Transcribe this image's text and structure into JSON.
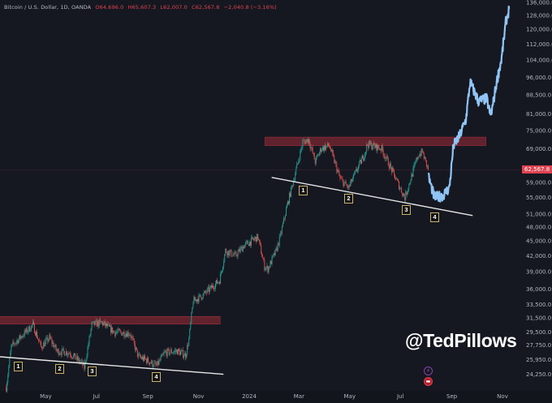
{
  "chart_data": {
    "type": "candlestick",
    "title": "Bitcoin / U.S. Dollar, 1D, OANDA",
    "ohlc": {
      "open": "O64,696.0",
      "high": "H65,607.3",
      "low": "L62,007.0",
      "close": "C62,567.8",
      "change": "−2,040.8 (−3.16%)"
    },
    "y_scale": "log",
    "ylim": [
      23500,
      136000
    ],
    "y_ticks": [
      "136,000.0",
      "128,000.0",
      "120,000.0",
      "112,000.0",
      "104,000.0",
      "96,000.0",
      "88,500.0",
      "81,000.0",
      "75,000.0",
      "69,000.0",
      "59,000.0",
      "55,000.0",
      "51,000.0",
      "48,000.0",
      "45,000.0",
      "42,000.0",
      "39,000.0",
      "36,000.0",
      "33,500.0",
      "31,500.0",
      "29,500.0",
      "27,750.0",
      "25,950.0",
      "24,250.0"
    ],
    "x_ticks": [
      {
        "label": "May",
        "date": "2023-05-01"
      },
      {
        "label": "Jul",
        "date": "2023-07-01"
      },
      {
        "label": "Sep",
        "date": "2023-09-01"
      },
      {
        "label": "Nov",
        "date": "2023-11-01"
      },
      {
        "label": "2024",
        "date": "2024-01-01"
      },
      {
        "label": "Mar",
        "date": "2024-03-01"
      },
      {
        "label": "May",
        "date": "2024-05-01"
      },
      {
        "label": "Jul",
        "date": "2024-07-01"
      },
      {
        "label": "Sep",
        "date": "2024-09-01"
      },
      {
        "label": "Nov",
        "date": "2024-11-01"
      }
    ],
    "current_price": 62567.8,
    "current_price_label": "62,567.8",
    "price_path": [
      [
        "2023-03-14",
        22800
      ],
      [
        "2023-03-20",
        27500
      ],
      [
        "2023-03-24",
        28000
      ],
      [
        "2023-04-15",
        30500
      ],
      [
        "2023-04-25",
        27500
      ],
      [
        "2023-05-05",
        28700
      ],
      [
        "2023-05-14",
        27000
      ],
      [
        "2023-05-29",
        26800
      ],
      [
        "2023-06-13",
        25500
      ],
      [
        "2023-06-16",
        25000
      ],
      [
        "2023-06-25",
        30500
      ],
      [
        "2023-07-07",
        30800
      ],
      [
        "2023-07-22",
        29500
      ],
      [
        "2023-08-10",
        29300
      ],
      [
        "2023-08-20",
        26300
      ],
      [
        "2023-08-30",
        25900
      ],
      [
        "2023-09-11",
        25200
      ],
      [
        "2023-09-21",
        26800
      ],
      [
        "2023-10-06",
        27000
      ],
      [
        "2023-10-16",
        26500
      ],
      [
        "2023-10-20",
        28500
      ],
      [
        "2023-10-25",
        34000
      ],
      [
        "2023-11-06",
        35000
      ],
      [
        "2023-11-26",
        37500
      ],
      [
        "2023-12-03",
        43000
      ],
      [
        "2023-12-15",
        42000
      ],
      [
        "2023-12-25",
        44000
      ],
      [
        "2024-01-11",
        45800
      ],
      [
        "2024-01-19",
        40000
      ],
      [
        "2024-01-23",
        39500
      ],
      [
        "2024-02-02",
        43000
      ],
      [
        "2024-02-07",
        46000
      ],
      [
        "2024-02-14",
        52000
      ],
      [
        "2024-02-25",
        61500
      ],
      [
        "2024-03-05",
        71000
      ],
      [
        "2024-03-12",
        72000
      ],
      [
        "2024-03-20",
        65000
      ],
      [
        "2024-03-27",
        69000
      ],
      [
        "2024-04-06",
        70000
      ],
      [
        "2024-04-19",
        60000
      ],
      [
        "2024-04-29",
        57500
      ],
      [
        "2024-05-10",
        63000
      ],
      [
        "2024-05-18",
        67000
      ],
      [
        "2024-05-22",
        70500
      ],
      [
        "2024-06-08",
        69000
      ],
      [
        "2024-06-23",
        61000
      ],
      [
        "2024-07-06",
        55000
      ],
      [
        "2024-07-13",
        60000
      ],
      [
        "2024-07-22",
        67000
      ],
      [
        "2024-07-27",
        68000
      ],
      [
        "2024-08-03",
        62567.8
      ]
    ],
    "projection_path": [
      [
        "2024-08-04",
        60500
      ],
      [
        "2024-08-11",
        55000
      ],
      [
        "2024-08-21",
        55500
      ],
      [
        "2024-08-29",
        57500
      ],
      [
        "2024-09-03",
        70000
      ],
      [
        "2024-09-10",
        73000
      ],
      [
        "2024-09-18",
        79000
      ],
      [
        "2024-09-23",
        94000
      ],
      [
        "2024-10-03",
        86000
      ],
      [
        "2024-10-13",
        87000
      ],
      [
        "2024-10-18",
        80000
      ],
      [
        "2024-10-25",
        94000
      ],
      [
        "2024-10-31",
        105000
      ],
      [
        "2024-11-05",
        124000
      ],
      [
        "2024-11-09",
        132000
      ]
    ],
    "resistance_zones": [
      {
        "from": "2023-03-06",
        "to": "2023-11-27",
        "low": 30600,
        "high": 31700
      },
      {
        "from": "2024-01-20",
        "to": "2024-10-12",
        "low": 70000,
        "high": 72800
      }
    ],
    "trendlines": [
      {
        "start": [
          "2023-03-06",
          26300
        ],
        "end": [
          "2023-12-01",
          24250
        ]
      },
      {
        "start": [
          "2024-01-28",
          60400
        ],
        "end": [
          "2024-09-26",
          50600
        ]
      }
    ],
    "pattern_labels": {
      "lower": [
        "1",
        "2",
        "3",
        "4"
      ],
      "upper": [
        "1",
        "2",
        "3",
        "4"
      ]
    },
    "colors": {
      "up": "#26a69a",
      "down": "#ef5350",
      "projection": "#90c4f5",
      "zone": "#7a2530",
      "trendline": "#e6e6e6",
      "background": "#151821",
      "price_line": "#e0434f"
    }
  },
  "watermark": "@TedPillows",
  "event_icons": [
    "lightning-icon",
    "us-flag-icon"
  ]
}
